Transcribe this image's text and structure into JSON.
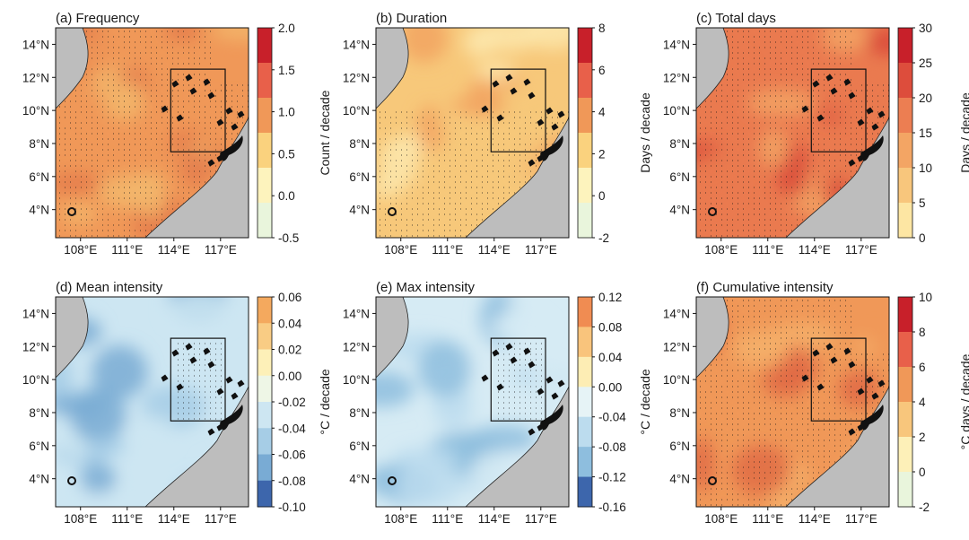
{
  "figure": {
    "map_x_ticks": [
      "108°E",
      "111°E",
      "114°E",
      "117°E"
    ],
    "map_y_ticks": [
      "14°N",
      "12°N",
      "10°N",
      "8°N",
      "6°N",
      "4°N"
    ]
  },
  "chart_data": [
    {
      "type": "heatmap",
      "title": "(a) Frequency",
      "colorbar_label": "Count / decade",
      "colorbar_ticks": [
        "2.0",
        "1.5",
        "1.0",
        "0.5",
        "0.0",
        "-0.5"
      ],
      "colorbar_colors": [
        "#c8202a",
        "#e8604a",
        "#f09858",
        "#fad27e",
        "#fdf3bd",
        "#e9f5dc"
      ],
      "dominant_value_range": [
        0.5,
        1.0
      ],
      "stippled": "most of domain",
      "colors": {
        "low": "#f3b86c",
        "mid": "#f09858",
        "high": "#e47a4b"
      }
    },
    {
      "type": "heatmap",
      "title": "(b) Duration",
      "colorbar_label": "Days / decade",
      "colorbar_ticks": [
        "8",
        "6",
        "4",
        "2",
        "0",
        "-2"
      ],
      "colorbar_colors": [
        "#c8202a",
        "#e8604a",
        "#f09858",
        "#fad27e",
        "#fdf3bd",
        "#e9f5dc"
      ],
      "dominant_value_range": [
        0,
        4
      ],
      "stippled": "central and southern areas",
      "colors": {
        "low": "#fde7ad",
        "mid": "#f7c87a",
        "high": "#f2a561"
      }
    },
    {
      "type": "heatmap",
      "title": "(c) Total days",
      "colorbar_label": "Days / decade",
      "colorbar_ticks": [
        "30",
        "25",
        "20",
        "15",
        "10",
        "5",
        "0"
      ],
      "colorbar_colors": [
        "#c8202a",
        "#dd4d3c",
        "#ec7e52",
        "#f3a564",
        "#f8c67c",
        "#fde6a3"
      ],
      "dominant_value_range": [
        15,
        25
      ],
      "stippled": "most of domain",
      "colors": {
        "low": "#f3a564",
        "mid": "#ea7a4f",
        "high": "#d9493a"
      }
    },
    {
      "type": "heatmap",
      "title": "(d) Mean intensity",
      "colorbar_label": "°C / decade",
      "colorbar_ticks": [
        "0.06",
        "0.04",
        "0.02",
        "0.00",
        "-0.02",
        "-0.04",
        "-0.06",
        "-0.08",
        "-0.10"
      ],
      "colorbar_colors": [
        "#f4a95e",
        "#f9cc84",
        "#fdf0b8",
        "#eef6e6",
        "#cde6f2",
        "#a6cde6",
        "#79abd4",
        "#3d66ac"
      ],
      "dominant_value_range": [
        -0.06,
        0.0
      ],
      "stippled": "central box region",
      "colors": {
        "low": "#a6cde6",
        "mid": "#cde6f2",
        "high": "#79abd4"
      }
    },
    {
      "type": "heatmap",
      "title": "(e) Max intensity",
      "colorbar_label": "°C / decade",
      "colorbar_ticks": [
        "0.12",
        "0.08",
        "0.04",
        "0.00",
        "-0.04",
        "-0.08",
        "-0.12",
        "-0.16"
      ],
      "colorbar_colors": [
        "#f08c52",
        "#f9c47c",
        "#fdedb4",
        "#e6f3f6",
        "#bcdcee",
        "#8ebede",
        "#3d66ac"
      ],
      "dominant_value_range": [
        -0.08,
        0.0
      ],
      "stippled": "central box region",
      "colors": {
        "low": "#bcdcee",
        "mid": "#d6ebf4",
        "high": "#8ebede"
      }
    },
    {
      "type": "heatmap",
      "title": "(f) Cumulative intensity",
      "colorbar_label": "°C days / decade",
      "colorbar_ticks": [
        "10",
        "8",
        "6",
        "4",
        "2",
        "0",
        "-2"
      ],
      "colorbar_colors": [
        "#c8202a",
        "#e8604a",
        "#f09858",
        "#f8c67c",
        "#fdf0b8",
        "#e9f5dc"
      ],
      "dominant_value_range": [
        2,
        6
      ],
      "stippled": "most of domain",
      "colors": {
        "low": "#f6b26b",
        "mid": "#f09858",
        "high": "#e06a44"
      }
    }
  ]
}
